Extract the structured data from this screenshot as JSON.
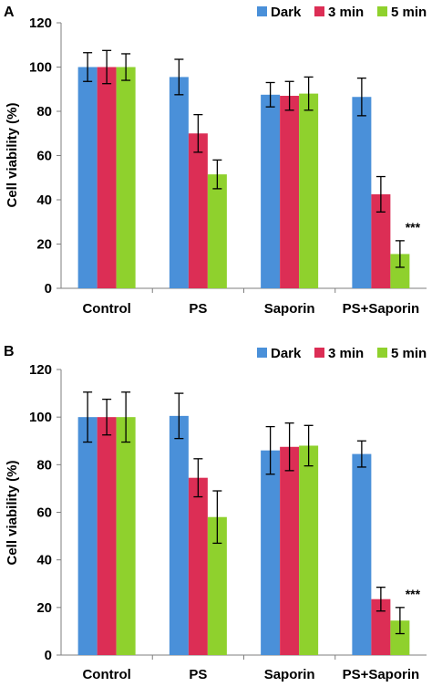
{
  "chart_data": [
    {
      "panel": "A",
      "type": "bar",
      "ylabel": "Cell viability (%)",
      "ylim": [
        0,
        120
      ],
      "yticks": [
        0,
        20,
        40,
        60,
        80,
        100,
        120
      ],
      "categories": [
        "Control",
        "PS",
        "Saporin",
        "PS+Saporin"
      ],
      "series": [
        {
          "name": "Dark",
          "color": "#4a90d9",
          "values": [
            100,
            95.5,
            87.5,
            86.5
          ],
          "errors": [
            6.5,
            8,
            5.5,
            8.5
          ]
        },
        {
          "name": "3 min",
          "color": "#dc2e55",
          "values": [
            100,
            70,
            87,
            42.5
          ],
          "errors": [
            7.5,
            8.5,
            6.5,
            8
          ]
        },
        {
          "name": "5 min",
          "color": "#8fd12d",
          "values": [
            100,
            51.5,
            88,
            15.5
          ],
          "errors": [
            6,
            6.5,
            7.5,
            6
          ]
        }
      ],
      "annotations": [
        {
          "text": "***",
          "category": "PS+Saporin",
          "series": "5 min"
        }
      ],
      "legend_position": "top-right",
      "grid": false
    },
    {
      "panel": "B",
      "type": "bar",
      "ylabel": "Cell viability (%)",
      "ylim": [
        0,
        120
      ],
      "yticks": [
        0,
        20,
        40,
        60,
        80,
        100,
        120
      ],
      "categories": [
        "Control",
        "PS",
        "Saporin",
        "PS+Saporin"
      ],
      "series": [
        {
          "name": "Dark",
          "color": "#4a90d9",
          "values": [
            100,
            100.5,
            86,
            84.5
          ],
          "errors": [
            10.5,
            9.5,
            10,
            5.5
          ]
        },
        {
          "name": "3 min",
          "color": "#dc2e55",
          "values": [
            100,
            74.5,
            87.5,
            23.5
          ],
          "errors": [
            7.5,
            8,
            10,
            5
          ]
        },
        {
          "name": "5 min",
          "color": "#8fd12d",
          "values": [
            100,
            58,
            88,
            14.5
          ],
          "errors": [
            10.5,
            11,
            8.5,
            5.5
          ]
        }
      ],
      "annotations": [
        {
          "text": "***",
          "category": "PS+Saporin",
          "series": "5 min"
        }
      ],
      "legend_position": "top-right",
      "grid": false
    }
  ]
}
